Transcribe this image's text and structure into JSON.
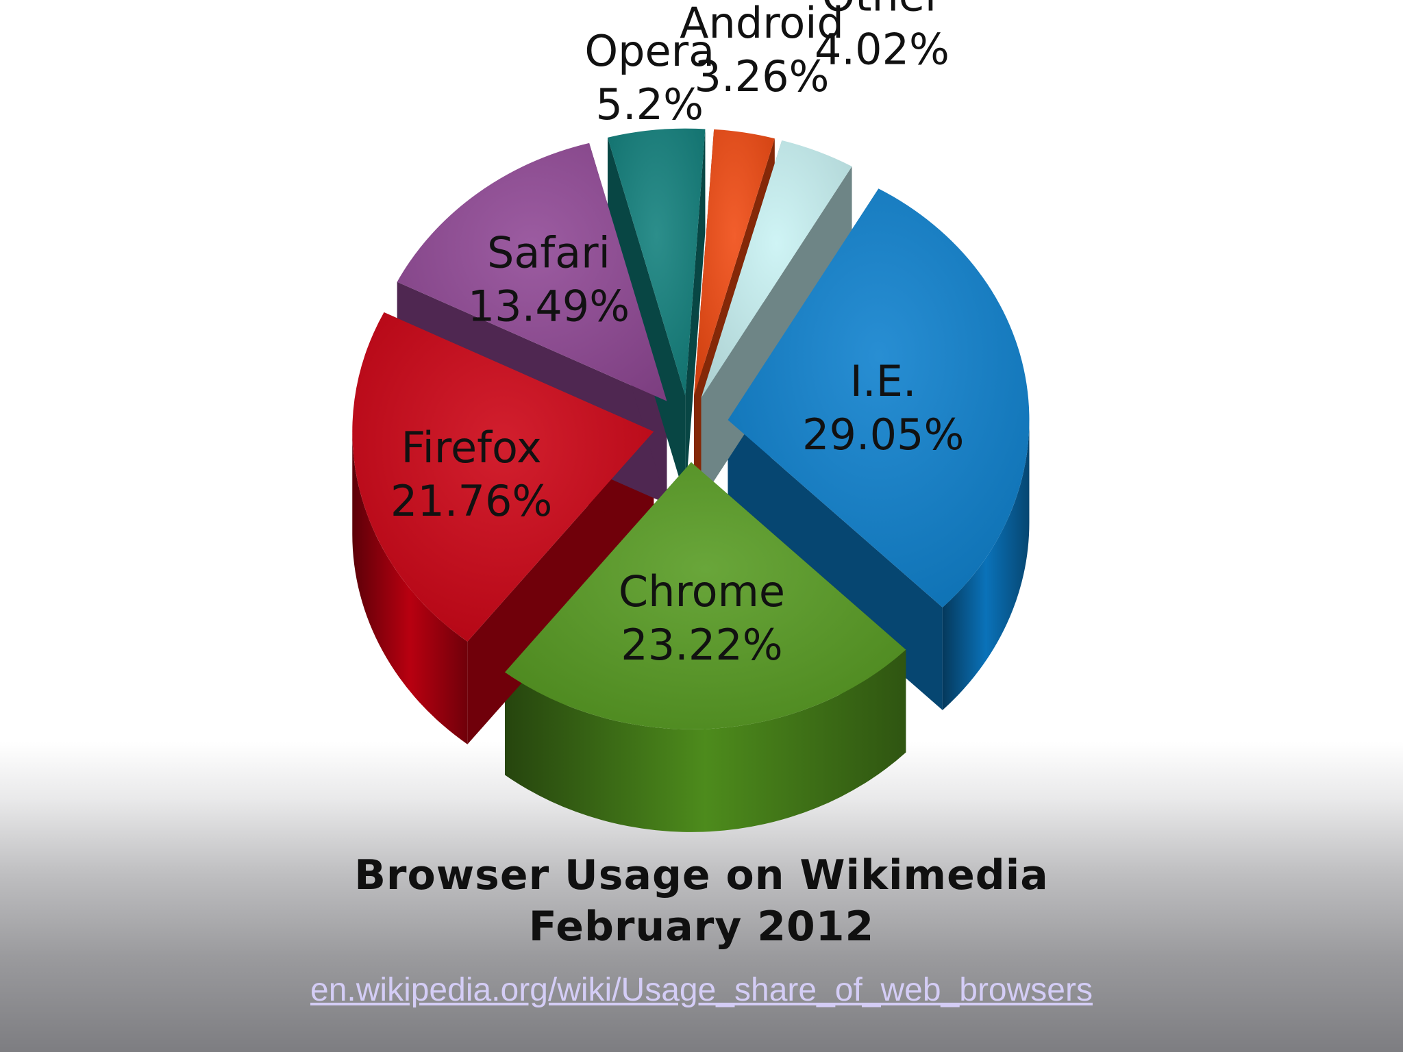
{
  "chart_data": {
    "type": "pie",
    "title": "Browser Usage on Wikimedia",
    "subtitle": "February 2012",
    "slices": [
      {
        "name": "I.E.",
        "value": 29.05,
        "label": "29.05%",
        "color": "#0b7fcd"
      },
      {
        "name": "Chrome",
        "value": 23.22,
        "label": "23.22%",
        "color": "#559a1f"
      },
      {
        "name": "Firefox",
        "value": 21.76,
        "label": "21.76%",
        "color": "#cc0012"
      },
      {
        "name": "Safari",
        "value": 13.49,
        "label": "13.49%",
        "color": "#8f4694"
      },
      {
        "name": "Opera",
        "value": 5.2,
        "label": "5.2%",
        "color": "#0f7f7b"
      },
      {
        "name": "Android",
        "value": 3.26,
        "label": "3.26%",
        "color": "#f0480f"
      },
      {
        "name": "Other",
        "value": 4.02,
        "label": "4.02%",
        "color": "#c8f2f4"
      }
    ]
  },
  "source": {
    "link_text": "en.wikipedia.org/wiki/Usage_share_of_web_browsers"
  }
}
